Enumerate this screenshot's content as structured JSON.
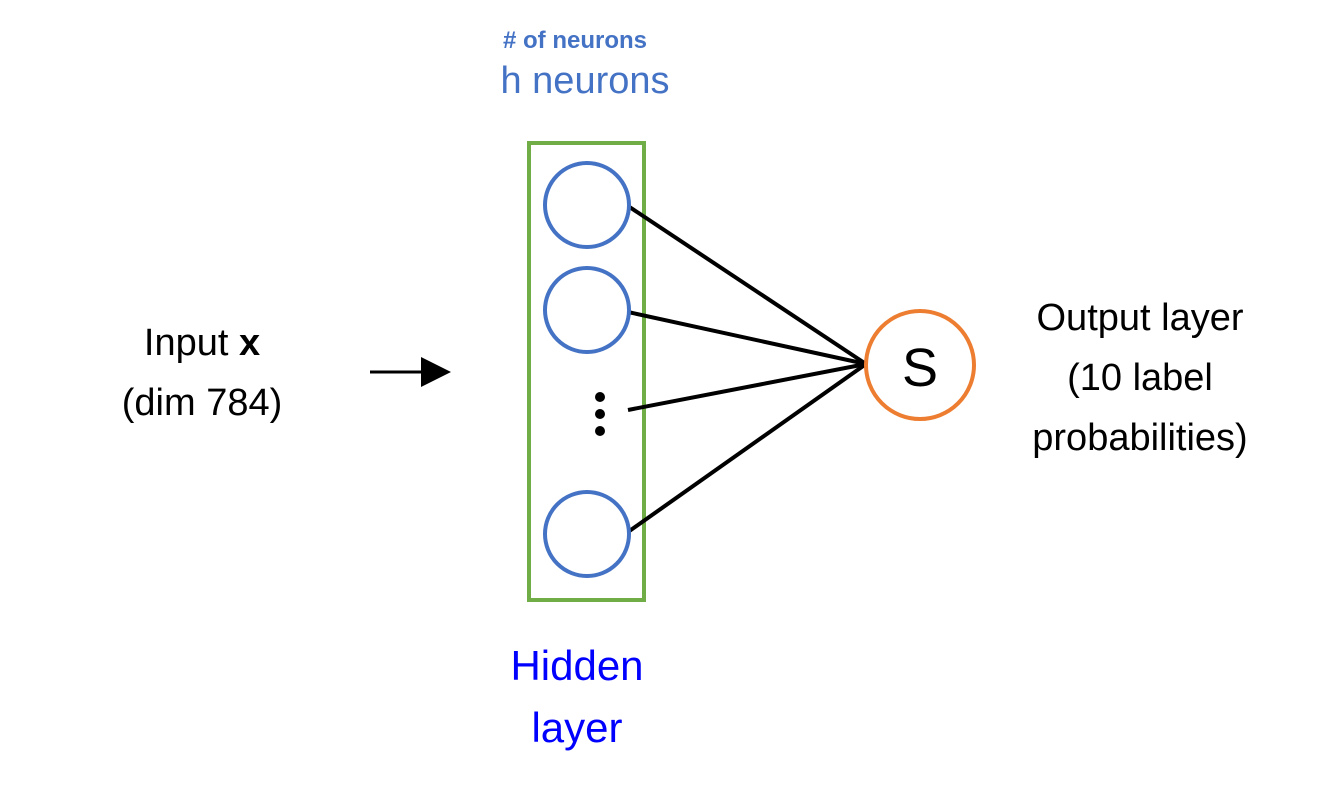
{
  "colors": {
    "neuron_stroke": "#4472C4",
    "layer_box": "#70AD47",
    "output_stroke": "#ED7D31",
    "hidden_label": "#0000FF",
    "annotation": "#4472C4",
    "line": "#000000"
  },
  "hidden_layer": {
    "annotation_top": "# of neurons",
    "neurons_label": "h neurons",
    "name_line1": "Hidden",
    "name_line2": "layer",
    "ellipsis": "⋮"
  },
  "input": {
    "line1_prefix": "Input ",
    "line1_var": "x",
    "line2": "(dim 784)"
  },
  "output": {
    "neuron_symbol": "S",
    "line1": "Output layer",
    "line2": "(10 label",
    "line3": "probabilities)"
  }
}
